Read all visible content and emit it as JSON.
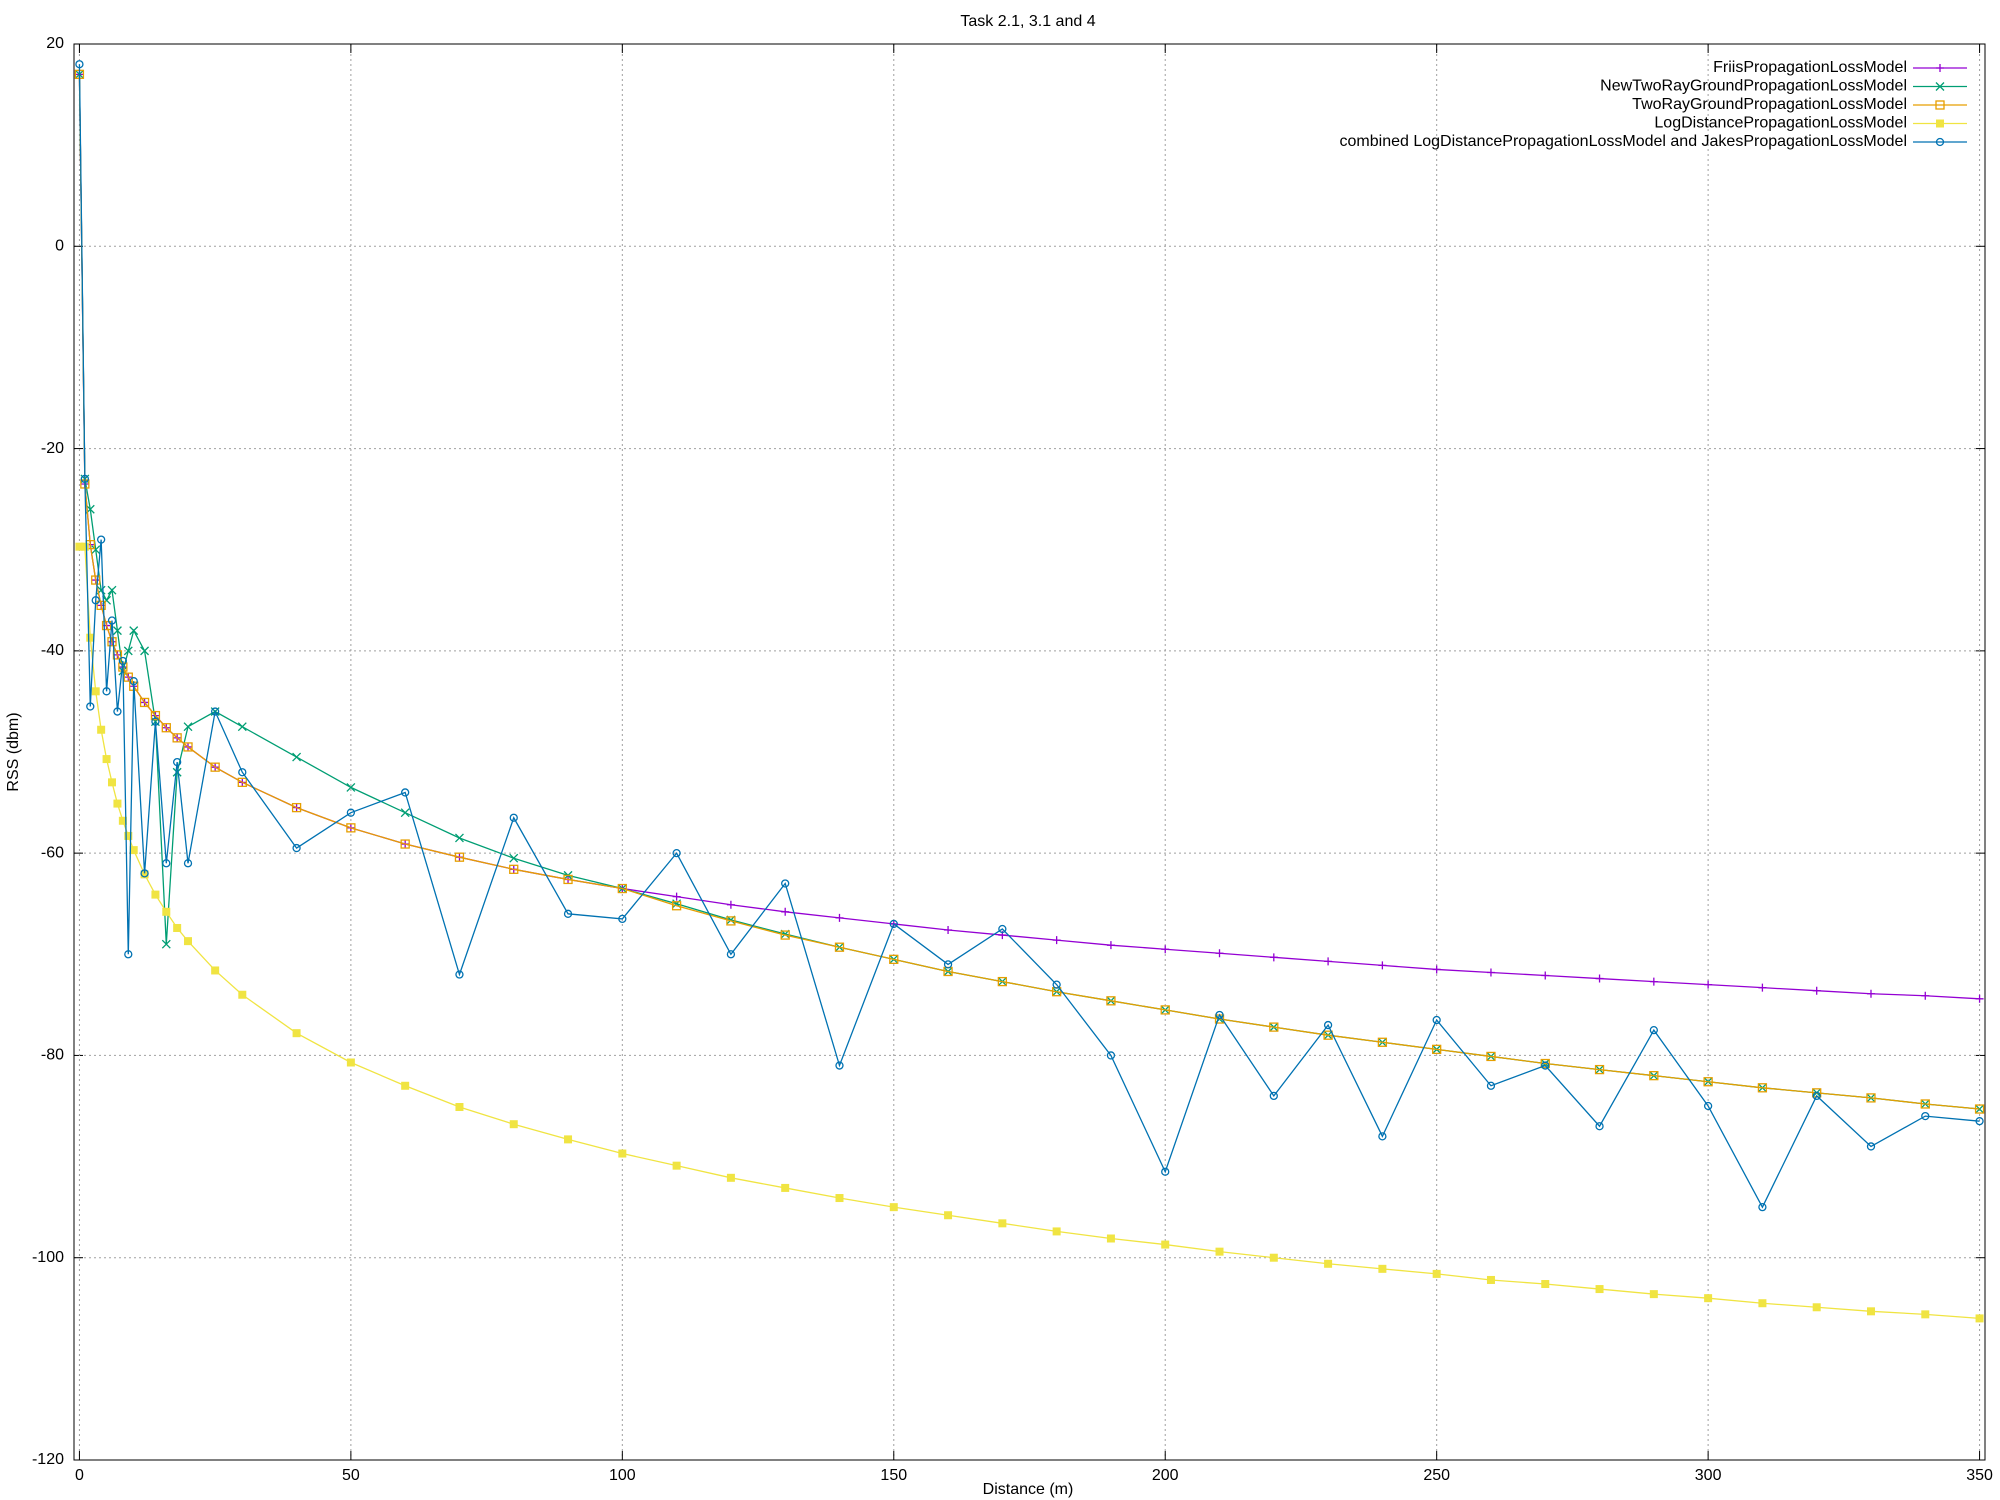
{
  "chart_data": {
    "type": "line",
    "title": "Task 2.1, 3.1 and 4",
    "xlabel": "Distance (m)",
    "ylabel": "RSS (dbm)",
    "xlim": [
      -1,
      351
    ],
    "xticks": [
      0,
      50,
      100,
      150,
      200,
      250,
      300,
      350
    ],
    "ylim": [
      -120,
      20
    ],
    "yticks": [
      -120,
      -100,
      -80,
      -60,
      -40,
      -20,
      0,
      20
    ],
    "grid": true,
    "legend": "top-right",
    "x": [
      0,
      1,
      2,
      3,
      4,
      5,
      6,
      7,
      8,
      9,
      10,
      12,
      14,
      16,
      18,
      20,
      25,
      30,
      40,
      50,
      60,
      70,
      80,
      90,
      100,
      110,
      120,
      130,
      140,
      150,
      160,
      170,
      180,
      190,
      200,
      210,
      220,
      230,
      240,
      250,
      260,
      270,
      280,
      290,
      300,
      310,
      320,
      330,
      340,
      350
    ],
    "series": [
      {
        "name": "FriisPropagationLossModel",
        "color": "#9400d3",
        "marker": "plus",
        "values": [
          17,
          -23.5,
          -29.5,
          -33.0,
          -35.5,
          -37.5,
          -39.1,
          -40.4,
          -41.6,
          -42.6,
          -43.5,
          -45.1,
          -46.4,
          -47.6,
          -48.6,
          -49.5,
          -51.5,
          -53.0,
          -55.5,
          -57.5,
          -59.1,
          -60.4,
          -61.6,
          -62.6,
          -63.5,
          -64.3,
          -65.1,
          -65.8,
          -66.4,
          -67.0,
          -67.6,
          -68.1,
          -68.6,
          -69.1,
          -69.5,
          -69.9,
          -70.3,
          -70.7,
          -71.1,
          -71.5,
          -71.8,
          -72.1,
          -72.4,
          -72.7,
          -73.0,
          -73.3,
          -73.6,
          -73.9,
          -74.1,
          -74.4
        ]
      },
      {
        "name": "NewTwoRayGroundPropagationLossModel",
        "color": "#009e73",
        "marker": "cross",
        "values": [
          17,
          -23,
          -26,
          -30,
          -34,
          -35,
          -34,
          -38,
          -42,
          -40,
          -38,
          -40,
          -47,
          -69,
          -52,
          -47.5,
          -46,
          -47.5,
          -50.5,
          -53.5,
          -56,
          -58.5,
          -60.5,
          -62.2,
          -63.5,
          -65.0,
          -66.6,
          -68.0,
          -69.3,
          -70.5,
          -71.7,
          -72.7,
          -73.7,
          -74.6,
          -75.5,
          -76.4,
          -77.2,
          -78.0,
          -78.7,
          -79.4,
          -80.1,
          -80.8,
          -81.4,
          -82.0,
          -82.6,
          -83.2,
          -83.7,
          -84.2,
          -84.8,
          -85.3
        ]
      },
      {
        "name": "TwoRayGroundPropagationLossModel",
        "color": "#e69f00",
        "marker": "square",
        "values": [
          17,
          -23.5,
          -29.5,
          -33.0,
          -35.5,
          -37.5,
          -39.1,
          -40.4,
          -41.6,
          -42.6,
          -43.5,
          -45.1,
          -46.4,
          -47.6,
          -48.6,
          -49.5,
          -51.5,
          -53.0,
          -55.5,
          -57.5,
          -59.1,
          -60.4,
          -61.6,
          -62.6,
          -63.5,
          -65.2,
          -66.7,
          -68.1,
          -69.3,
          -70.5,
          -71.7,
          -72.7,
          -73.7,
          -74.6,
          -75.5,
          -76.4,
          -77.2,
          -78.0,
          -78.7,
          -79.4,
          -80.1,
          -80.8,
          -81.4,
          -82.0,
          -82.6,
          -83.2,
          -83.7,
          -84.2,
          -84.8,
          -85.3
        ]
      },
      {
        "name": "LogDistancePropagationLossModel",
        "color": "#f0e442",
        "marker": "filled-square",
        "values": [
          -29.7,
          -29.7,
          -38.7,
          -44.0,
          -47.8,
          -50.7,
          -53.0,
          -55.1,
          -56.8,
          -58.3,
          -59.7,
          -62.1,
          -64.1,
          -65.8,
          -67.4,
          -68.7,
          -71.6,
          -74.0,
          -77.8,
          -80.7,
          -83.0,
          -85.1,
          -86.8,
          -88.3,
          -89.7,
          -90.9,
          -92.1,
          -93.1,
          -94.1,
          -95.0,
          -95.8,
          -96.6,
          -97.4,
          -98.1,
          -98.7,
          -99.4,
          -100.0,
          -100.6,
          -101.1,
          -101.6,
          -102.2,
          -102.6,
          -103.1,
          -103.6,
          -104.0,
          -104.5,
          -104.9,
          -105.3,
          -105.6,
          -106.0
        ]
      },
      {
        "name": "combined LogDistancePropagationLossModel and JakesPropagationLossModel",
        "color": "#0072b2",
        "marker": "circle",
        "values": [
          18,
          -23,
          -45.5,
          -35,
          -29,
          -44,
          -37,
          -46,
          -41,
          -70,
          -43,
          -62,
          -47,
          -61,
          -51,
          -61,
          -46,
          -52,
          -59.5,
          -56,
          -54,
          -72,
          -56.5,
          -66,
          -66.5,
          -60,
          -70,
          -63,
          -81,
          -67,
          -71,
          -67.5,
          -73,
          -80,
          -91.5,
          -76,
          -84,
          -77,
          -88,
          -76.5,
          -83,
          -81,
          -87,
          -77.5,
          -85,
          -95,
          -84,
          -89,
          -86,
          -86.5
        ]
      }
    ]
  }
}
